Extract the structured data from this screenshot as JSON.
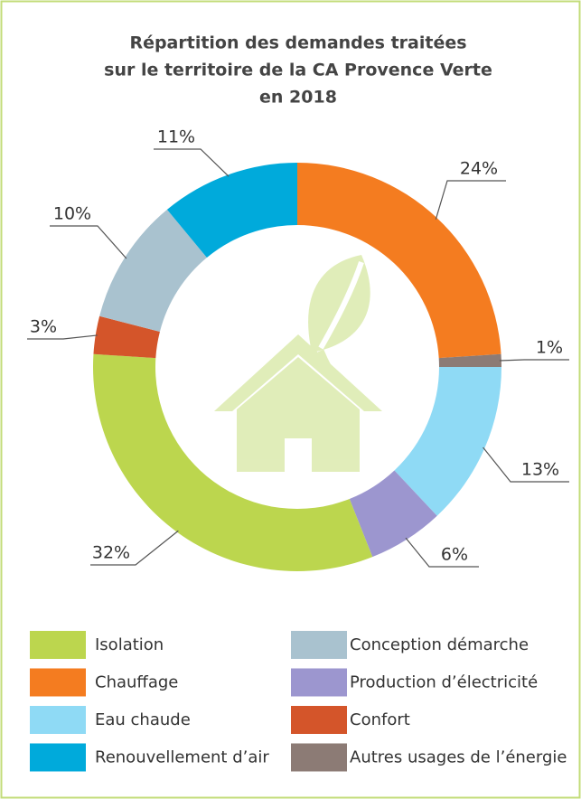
{
  "chart_data": {
    "type": "donut",
    "title": [
      "Répartition des demandes traitées",
      "sur le territoire de la CA Provence Verte",
      "en 2018"
    ],
    "categories": [
      "Chauffage",
      "Autres usages de l’énergie",
      "Eau chaude",
      "Production d’électricité",
      "Isolation",
      "Confort",
      "Conception démarche",
      "Renouvellement d’air"
    ],
    "values": [
      24,
      1,
      13,
      6,
      32,
      3,
      10,
      11
    ],
    "value_labels": [
      "24%",
      "1%",
      "13%",
      "6%",
      "32%",
      "3%",
      "10%",
      "11%"
    ],
    "colors": [
      "#f47c20",
      "#8c7b75",
      "#8fdaf5",
      "#9c96cf",
      "#bcd64e",
      "#d4552a",
      "#a9c2cf",
      "#00aadb"
    ]
  }
}
